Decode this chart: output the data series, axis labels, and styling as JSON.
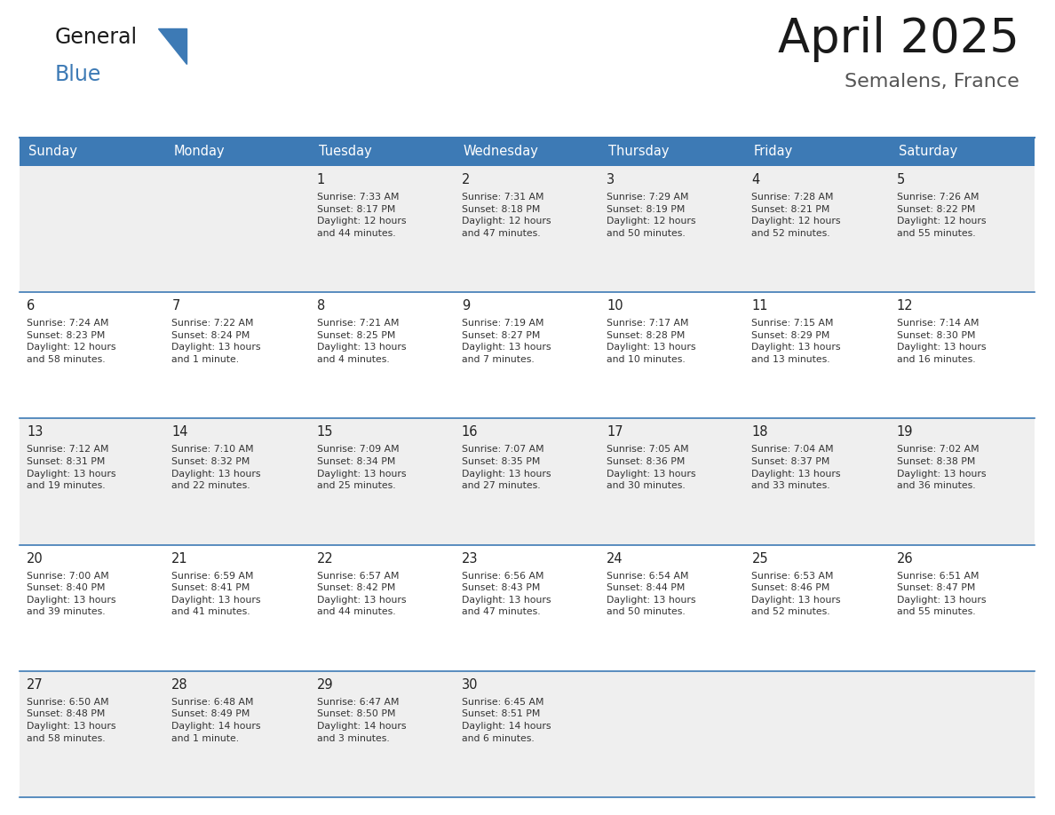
{
  "title": "April 2025",
  "subtitle": "Semalens, France",
  "header_bg_color": "#3d7ab5",
  "header_text_color": "#ffffff",
  "cell_bg_even": "#efefef",
  "cell_bg_odd": "#ffffff",
  "day_number_color": "#222222",
  "cell_text_color": "#333333",
  "border_color": "#3d7ab5",
  "days_of_week": [
    "Sunday",
    "Monday",
    "Tuesday",
    "Wednesday",
    "Thursday",
    "Friday",
    "Saturday"
  ],
  "logo_general_color": "#1a1a1a",
  "logo_blue_color": "#3d7ab5",
  "logo_triangle_color": "#3d7ab5",
  "title_color": "#1a1a1a",
  "subtitle_color": "#555555",
  "weeks": [
    [
      {
        "day": null,
        "text": ""
      },
      {
        "day": null,
        "text": ""
      },
      {
        "day": 1,
        "text": "Sunrise: 7:33 AM\nSunset: 8:17 PM\nDaylight: 12 hours\nand 44 minutes."
      },
      {
        "day": 2,
        "text": "Sunrise: 7:31 AM\nSunset: 8:18 PM\nDaylight: 12 hours\nand 47 minutes."
      },
      {
        "day": 3,
        "text": "Sunrise: 7:29 AM\nSunset: 8:19 PM\nDaylight: 12 hours\nand 50 minutes."
      },
      {
        "day": 4,
        "text": "Sunrise: 7:28 AM\nSunset: 8:21 PM\nDaylight: 12 hours\nand 52 minutes."
      },
      {
        "day": 5,
        "text": "Sunrise: 7:26 AM\nSunset: 8:22 PM\nDaylight: 12 hours\nand 55 minutes."
      }
    ],
    [
      {
        "day": 6,
        "text": "Sunrise: 7:24 AM\nSunset: 8:23 PM\nDaylight: 12 hours\nand 58 minutes."
      },
      {
        "day": 7,
        "text": "Sunrise: 7:22 AM\nSunset: 8:24 PM\nDaylight: 13 hours\nand 1 minute."
      },
      {
        "day": 8,
        "text": "Sunrise: 7:21 AM\nSunset: 8:25 PM\nDaylight: 13 hours\nand 4 minutes."
      },
      {
        "day": 9,
        "text": "Sunrise: 7:19 AM\nSunset: 8:27 PM\nDaylight: 13 hours\nand 7 minutes."
      },
      {
        "day": 10,
        "text": "Sunrise: 7:17 AM\nSunset: 8:28 PM\nDaylight: 13 hours\nand 10 minutes."
      },
      {
        "day": 11,
        "text": "Sunrise: 7:15 AM\nSunset: 8:29 PM\nDaylight: 13 hours\nand 13 minutes."
      },
      {
        "day": 12,
        "text": "Sunrise: 7:14 AM\nSunset: 8:30 PM\nDaylight: 13 hours\nand 16 minutes."
      }
    ],
    [
      {
        "day": 13,
        "text": "Sunrise: 7:12 AM\nSunset: 8:31 PM\nDaylight: 13 hours\nand 19 minutes."
      },
      {
        "day": 14,
        "text": "Sunrise: 7:10 AM\nSunset: 8:32 PM\nDaylight: 13 hours\nand 22 minutes."
      },
      {
        "day": 15,
        "text": "Sunrise: 7:09 AM\nSunset: 8:34 PM\nDaylight: 13 hours\nand 25 minutes."
      },
      {
        "day": 16,
        "text": "Sunrise: 7:07 AM\nSunset: 8:35 PM\nDaylight: 13 hours\nand 27 minutes."
      },
      {
        "day": 17,
        "text": "Sunrise: 7:05 AM\nSunset: 8:36 PM\nDaylight: 13 hours\nand 30 minutes."
      },
      {
        "day": 18,
        "text": "Sunrise: 7:04 AM\nSunset: 8:37 PM\nDaylight: 13 hours\nand 33 minutes."
      },
      {
        "day": 19,
        "text": "Sunrise: 7:02 AM\nSunset: 8:38 PM\nDaylight: 13 hours\nand 36 minutes."
      }
    ],
    [
      {
        "day": 20,
        "text": "Sunrise: 7:00 AM\nSunset: 8:40 PM\nDaylight: 13 hours\nand 39 minutes."
      },
      {
        "day": 21,
        "text": "Sunrise: 6:59 AM\nSunset: 8:41 PM\nDaylight: 13 hours\nand 41 minutes."
      },
      {
        "day": 22,
        "text": "Sunrise: 6:57 AM\nSunset: 8:42 PM\nDaylight: 13 hours\nand 44 minutes."
      },
      {
        "day": 23,
        "text": "Sunrise: 6:56 AM\nSunset: 8:43 PM\nDaylight: 13 hours\nand 47 minutes."
      },
      {
        "day": 24,
        "text": "Sunrise: 6:54 AM\nSunset: 8:44 PM\nDaylight: 13 hours\nand 50 minutes."
      },
      {
        "day": 25,
        "text": "Sunrise: 6:53 AM\nSunset: 8:46 PM\nDaylight: 13 hours\nand 52 minutes."
      },
      {
        "day": 26,
        "text": "Sunrise: 6:51 AM\nSunset: 8:47 PM\nDaylight: 13 hours\nand 55 minutes."
      }
    ],
    [
      {
        "day": 27,
        "text": "Sunrise: 6:50 AM\nSunset: 8:48 PM\nDaylight: 13 hours\nand 58 minutes."
      },
      {
        "day": 28,
        "text": "Sunrise: 6:48 AM\nSunset: 8:49 PM\nDaylight: 14 hours\nand 1 minute."
      },
      {
        "day": 29,
        "text": "Sunrise: 6:47 AM\nSunset: 8:50 PM\nDaylight: 14 hours\nand 3 minutes."
      },
      {
        "day": 30,
        "text": "Sunrise: 6:45 AM\nSunset: 8:51 PM\nDaylight: 14 hours\nand 6 minutes."
      },
      {
        "day": null,
        "text": ""
      },
      {
        "day": null,
        "text": ""
      },
      {
        "day": null,
        "text": ""
      }
    ]
  ]
}
